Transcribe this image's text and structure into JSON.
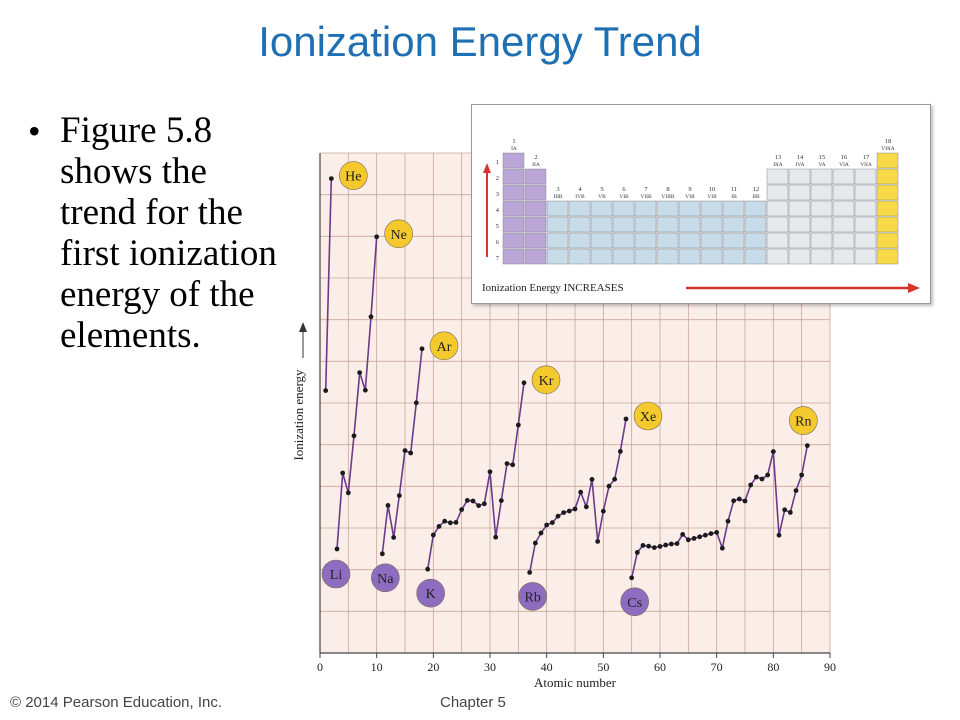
{
  "slide": {
    "title": "Ionization Energy Trend",
    "bullet": "Figure 5.8 shows the trend for the first ionization energy of the elements.",
    "footer_left": "© 2014 Pearson Education, Inc.",
    "footer_right": "Chapter 5"
  },
  "periodic_table": {
    "arrow_label": "Ionization Energy INCREASES",
    "group_labels": [
      "1",
      "2",
      "3",
      "4",
      "5",
      "6",
      "7",
      "8",
      "9",
      "10",
      "11",
      "12",
      "13",
      "14",
      "15",
      "16",
      "17",
      "18"
    ],
    "roman_labels": [
      "IA",
      "IIA",
      "IIIB",
      "IVB",
      "VB",
      "VIB",
      "VIIB",
      "VIIIB",
      "VIII",
      "VIII",
      "IB",
      "IIB",
      "IIIA",
      "IVA",
      "VA",
      "VIA",
      "VIIA",
      "VIIIA"
    ],
    "period_labels": [
      "1",
      "2",
      "3",
      "4",
      "5",
      "6",
      "7"
    ],
    "colors": {
      "s_block": "#b9a6d6",
      "d_block": "#c7dbe9",
      "p_block": "#e6e8ec",
      "noble": "#f7d94a",
      "arrow": "#d7342a"
    }
  },
  "chart_data": {
    "type": "line",
    "xlabel": "Atomic number",
    "ylabel": "Ionization energy",
    "xlim": [
      0,
      90
    ],
    "xticks": [
      0,
      10,
      20,
      30,
      40,
      50,
      60,
      70,
      80,
      90
    ],
    "ylim": [
      0,
      2500
    ],
    "grid": true,
    "colors": {
      "background": "#fbeee8",
      "grid": "#c9a69a",
      "line": "#6a3b8a",
      "noble_gas": "#f3c92e",
      "alkali": "#8e6cc0"
    },
    "segments": [
      [
        [
          1,
          1312
        ],
        [
          2,
          2372
        ]
      ],
      [
        [
          3,
          520
        ],
        [
          4,
          900
        ],
        [
          5,
          801
        ],
        [
          6,
          1086
        ],
        [
          7,
          1402
        ],
        [
          8,
          1314
        ],
        [
          9,
          1681
        ],
        [
          10,
          2081
        ]
      ],
      [
        [
          11,
          496
        ],
        [
          12,
          738
        ],
        [
          13,
          578
        ],
        [
          14,
          787
        ],
        [
          15,
          1012
        ],
        [
          16,
          1000
        ],
        [
          17,
          1251
        ],
        [
          18,
          1521
        ]
      ],
      [
        [
          19,
          419
        ],
        [
          20,
          590
        ],
        [
          21,
          633
        ],
        [
          22,
          659
        ],
        [
          23,
          651
        ],
        [
          24,
          653
        ],
        [
          25,
          717
        ],
        [
          26,
          763
        ],
        [
          27,
          760
        ],
        [
          28,
          737
        ],
        [
          29,
          746
        ],
        [
          30,
          906
        ],
        [
          31,
          579
        ],
        [
          32,
          762
        ],
        [
          33,
          947
        ],
        [
          34,
          941
        ],
        [
          35,
          1140
        ],
        [
          36,
          1351
        ]
      ],
      [
        [
          37,
          403
        ],
        [
          38,
          550
        ],
        [
          39,
          600
        ],
        [
          40,
          640
        ],
        [
          41,
          652
        ],
        [
          42,
          684
        ],
        [
          43,
          702
        ],
        [
          44,
          710
        ],
        [
          45,
          720
        ],
        [
          46,
          804
        ],
        [
          47,
          731
        ],
        [
          48,
          868
        ],
        [
          49,
          558
        ],
        [
          50,
          709
        ],
        [
          51,
          834
        ],
        [
          52,
          869
        ],
        [
          53,
          1008
        ],
        [
          54,
          1170
        ]
      ],
      [
        [
          55,
          376
        ],
        [
          56,
          503
        ],
        [
          57,
          538
        ],
        [
          58,
          534
        ],
        [
          59,
          527
        ],
        [
          60,
          533
        ],
        [
          61,
          540
        ],
        [
          62,
          545
        ],
        [
          63,
          547
        ],
        [
          64,
          593
        ],
        [
          65,
          566
        ],
        [
          66,
          573
        ],
        [
          67,
          581
        ],
        [
          68,
          589
        ],
        [
          69,
          597
        ],
        [
          70,
          603
        ],
        [
          71,
          524
        ],
        [
          72,
          659
        ],
        [
          73,
          761
        ],
        [
          74,
          770
        ],
        [
          75,
          760
        ],
        [
          76,
          840
        ],
        [
          77,
          880
        ],
        [
          78,
          870
        ],
        [
          79,
          890
        ],
        [
          80,
          1007
        ],
        [
          81,
          589
        ],
        [
          82,
          716
        ],
        [
          83,
          703
        ],
        [
          84,
          812
        ],
        [
          85,
          890
        ],
        [
          86,
          1037
        ]
      ]
    ],
    "annotations": [
      {
        "label": "He",
        "z": 2,
        "kind": "noble"
      },
      {
        "label": "Ne",
        "z": 10,
        "kind": "noble"
      },
      {
        "label": "Ar",
        "z": 18,
        "kind": "noble"
      },
      {
        "label": "Kr",
        "z": 36,
        "kind": "noble"
      },
      {
        "label": "Xe",
        "z": 54,
        "kind": "noble"
      },
      {
        "label": "Rn",
        "z": 86,
        "kind": "noble"
      },
      {
        "label": "Li",
        "z": 3,
        "kind": "alkali"
      },
      {
        "label": "Na",
        "z": 11,
        "kind": "alkali"
      },
      {
        "label": "K",
        "z": 19,
        "kind": "alkali"
      },
      {
        "label": "Rb",
        "z": 37,
        "kind": "alkali"
      },
      {
        "label": "Cs",
        "z": 55,
        "kind": "alkali"
      }
    ]
  }
}
